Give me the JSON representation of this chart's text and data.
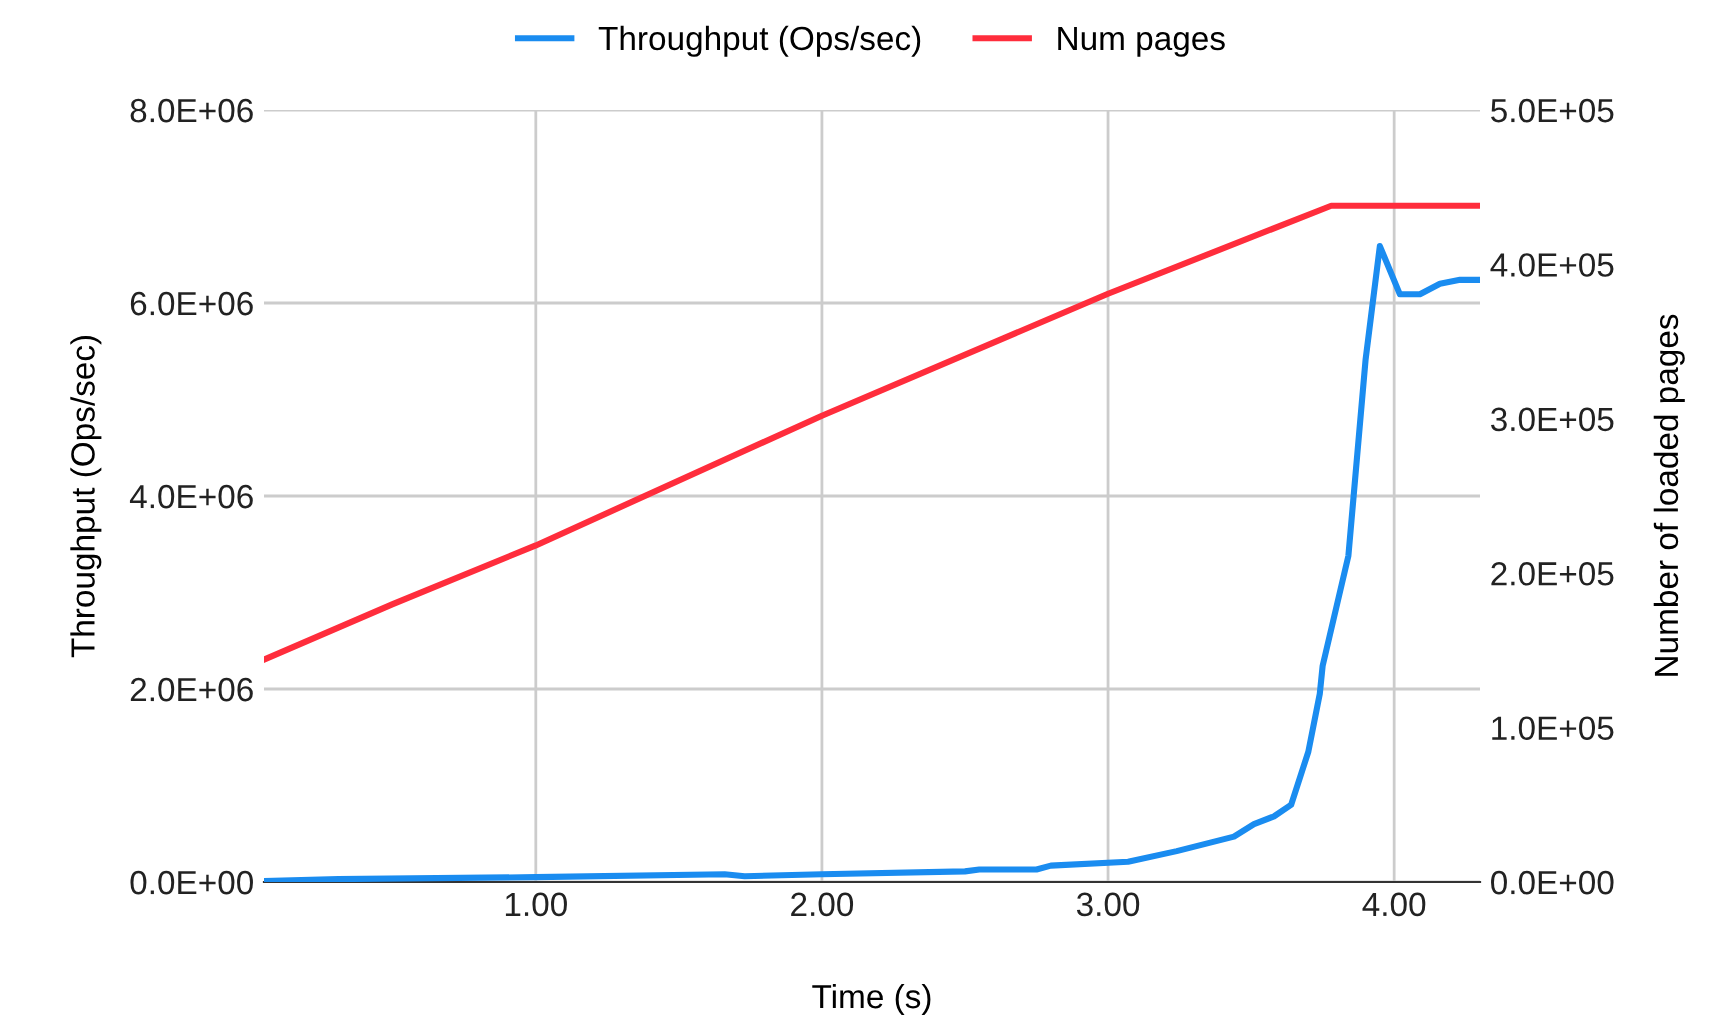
{
  "chart_data": {
    "type": "line",
    "xlabel": "Time (s)",
    "ylabel": "Throughput (Ops/sec)",
    "y2label": "Number of loaded pages",
    "xlim": [
      0.05,
      4.3
    ],
    "xticks": [
      {
        "value": 1,
        "label": "1.00"
      },
      {
        "value": 2,
        "label": "2.00"
      },
      {
        "value": 3,
        "label": "3.00"
      },
      {
        "value": 4,
        "label": "4.00"
      }
    ],
    "ylim": [
      0,
      8000000
    ],
    "yticks": [
      {
        "value": 0,
        "label": "0.0E+00"
      },
      {
        "value": 2000000,
        "label": "2.0E+06"
      },
      {
        "value": 4000000,
        "label": "4.0E+06"
      },
      {
        "value": 6000000,
        "label": "6.0E+06"
      },
      {
        "value": 8000000,
        "label": "8.0E+06"
      }
    ],
    "y2lim": [
      0,
      500000
    ],
    "y2ticks": [
      {
        "value": 0,
        "label": "0.0E+00"
      },
      {
        "value": 100000,
        "label": "1.0E+05"
      },
      {
        "value": 200000,
        "label": "2.0E+05"
      },
      {
        "value": 300000,
        "label": "3.0E+05"
      },
      {
        "value": 400000,
        "label": "4.0E+05"
      },
      {
        "value": 500000,
        "label": "5.0E+05"
      }
    ],
    "grid": true,
    "legend": "top",
    "marker": "none",
    "line_style": "solid",
    "series": [
      {
        "name": "Throughput (Ops/sec)",
        "color": "#1a8cf0",
        "axis": "y",
        "x": [
          0.05,
          0.31,
          1.0,
          1.66,
          1.73,
          2.0,
          2.5,
          2.55,
          2.75,
          2.8,
          3.07,
          3.24,
          3.44,
          3.51,
          3.58,
          3.64,
          3.7,
          3.74,
          3.75,
          3.84,
          3.9,
          3.95,
          4.02,
          4.09,
          4.16,
          4.23,
          4.3
        ],
        "values": [
          10000,
          30000,
          50000,
          80000,
          60000,
          80000,
          110000,
          130000,
          130000,
          170000,
          210000,
          320000,
          470000,
          600000,
          680000,
          800000,
          1350000,
          1950000,
          2240000,
          3380000,
          5410000,
          6590000,
          6090000,
          6090000,
          6200000,
          6240000,
          6240000
        ]
      },
      {
        "name": "Num pages",
        "color": "#ff2d3c",
        "axis": "y2",
        "x": [
          0.05,
          0.5,
          1.0,
          2.0,
          3.0,
          3.78,
          4.3
        ],
        "values": [
          144000,
          180000,
          218000,
          302000,
          381000,
          438000,
          438000
        ]
      }
    ]
  }
}
